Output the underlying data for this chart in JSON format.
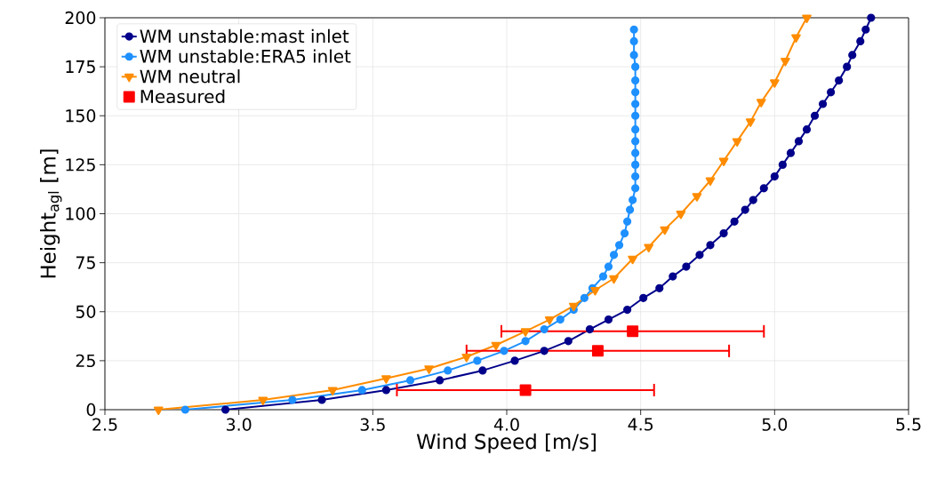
{
  "chart_data": {
    "type": "line",
    "xlabel": "Wind Speed [m/s]",
    "ylabel": "Height$_{agl}$ [m]",
    "xlim": [
      2.5,
      5.5
    ],
    "ylim": [
      0,
      200
    ],
    "xticks": [
      2.5,
      {
        "value": 3,
        "label": "3.0"
      },
      3.5,
      {
        "value": 4,
        "label": "4.0"
      },
      4.5,
      {
        "value": 5,
        "label": "5.0"
      },
      5.5
    ],
    "yticks": [
      0,
      25,
      50,
      75,
      100,
      125,
      150,
      175,
      200
    ],
    "grid": true,
    "legend": "top left",
    "series": [
      {
        "name": "WM unstable:mast inlet",
        "marker": "circle",
        "color": "#00008b",
        "x": [
          2.95,
          3.31,
          3.55,
          3.75,
          3.91,
          4.03,
          4.14,
          4.23,
          4.31,
          4.38,
          4.45,
          4.51,
          4.57,
          4.62,
          4.67,
          4.72,
          4.76,
          4.81,
          4.85,
          4.89,
          4.92,
          4.96,
          5.0,
          5.03,
          5.06,
          5.09,
          5.12,
          5.15,
          5.18,
          5.21,
          5.24,
          5.27,
          5.29,
          5.32,
          5.34,
          5.36
        ],
        "values": [
          0,
          5,
          10,
          15,
          20,
          25,
          30,
          35,
          41,
          46,
          51,
          57,
          62,
          68,
          73,
          79,
          84,
          90,
          96,
          102,
          107,
          113,
          119,
          125,
          131,
          137,
          143,
          150,
          156,
          162,
          168,
          175,
          181,
          188,
          194,
          200
        ]
      },
      {
        "name": "WM unstable:ERA5 inlet",
        "marker": "circle",
        "color": "#1e90ff",
        "x": [
          2.8,
          3.2,
          3.46,
          3.64,
          3.78,
          3.89,
          3.99,
          4.07,
          4.14,
          4.2,
          4.25,
          4.29,
          4.32,
          4.36,
          4.38,
          4.4,
          4.42,
          4.44,
          4.45,
          4.46,
          4.47,
          4.48,
          4.48,
          4.48,
          4.48,
          4.48,
          4.48,
          4.48,
          4.48,
          4.48,
          4.48,
          4.48,
          4.475,
          4.475,
          4.475
        ],
        "values": [
          0,
          5,
          10,
          15,
          20,
          25,
          30,
          35,
          41,
          46,
          51,
          57,
          62,
          68,
          73,
          79,
          84,
          90,
          96,
          102,
          107,
          113,
          119,
          125,
          131,
          137,
          143,
          150,
          156,
          162,
          168,
          175,
          181,
          188,
          194
        ]
      },
      {
        "name": "WM neutral",
        "marker": "triangle",
        "color": "#ff8c00",
        "x": [
          2.7,
          3.09,
          3.35,
          3.55,
          3.71,
          3.85,
          3.96,
          4.07,
          4.16,
          4.25,
          4.33,
          4.4,
          4.47,
          4.53,
          4.59,
          4.65,
          4.71,
          4.76,
          4.81,
          4.86,
          4.91,
          4.95,
          5.0,
          5.04,
          5.08,
          5.12
        ],
        "values": [
          0,
          5,
          10,
          16,
          21,
          27,
          33,
          40,
          46,
          53,
          61,
          67,
          77,
          83,
          92,
          100,
          109,
          117,
          127,
          137,
          147,
          157,
          167,
          178,
          190,
          200
        ]
      },
      {
        "name": "Measured",
        "type": "scatter",
        "marker": "square",
        "color": "#ff0000",
        "x": [
          4.07,
          4.34,
          4.47
        ],
        "values": [
          10,
          30,
          40
        ],
        "xerrors": [
          0.48,
          0.49,
          0.49
        ]
      }
    ]
  }
}
